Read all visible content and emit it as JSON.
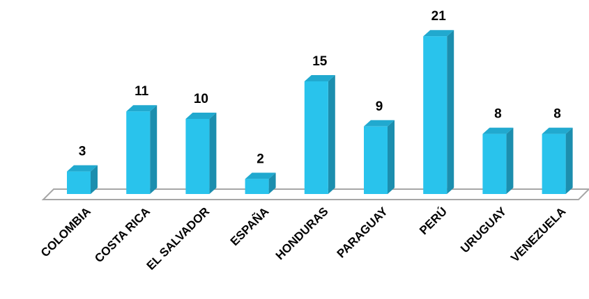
{
  "chart_data": {
    "type": "bar",
    "style": "3d-column",
    "categories": [
      "COLOMBIA",
      "COSTA RICA",
      "EL SALVADOR",
      "ESPAÑA",
      "HONDURAS",
      "PARAGUAY",
      "PERÚ",
      "URUGUAY",
      "VENEZUELA"
    ],
    "values": [
      3,
      11,
      10,
      2,
      15,
      9,
      21,
      8,
      8
    ],
    "data_labels": [
      "3",
      "11",
      "10",
      "2",
      "15",
      "9",
      "21",
      "8",
      "8"
    ],
    "title": "",
    "xlabel": "",
    "ylabel": "",
    "ylim": [
      0,
      21
    ],
    "grid": false,
    "legend": "none",
    "colors": {
      "bar_front": "#29C3EC",
      "bar_side": "#1C8EAE",
      "bar_top": "#21A9CF",
      "floor_stroke": "#A6A6A6"
    }
  }
}
